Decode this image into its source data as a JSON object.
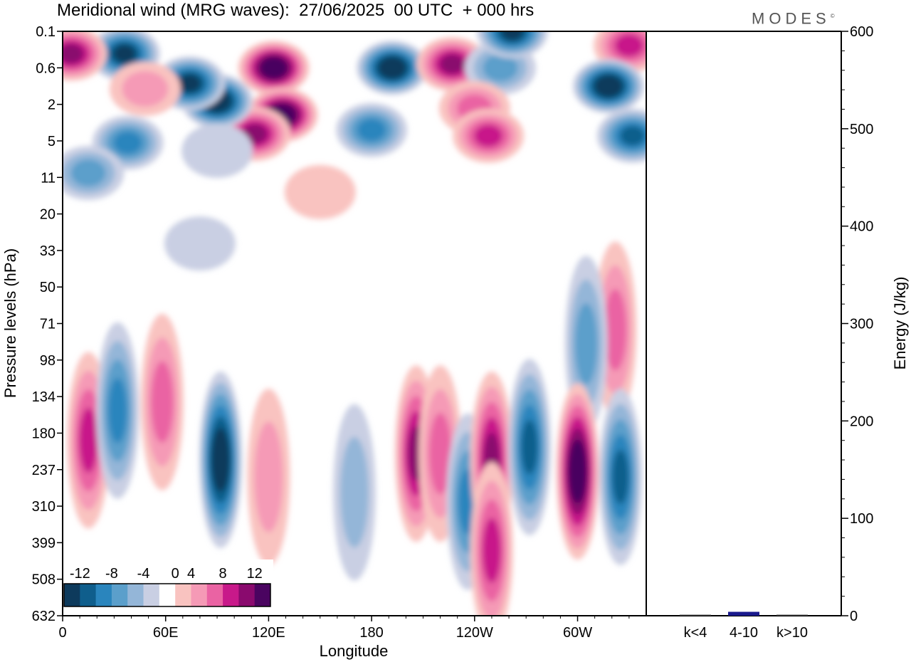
{
  "title": "Meridional wind (MRG waves):  27/06/2025  00 UTC  + 000 hrs",
  "logo": "MODES",
  "colors": {
    "neg": [
      "#0d3a5c",
      "#0f5e8c",
      "#2a85bd",
      "#5b9fcb",
      "#94b6d8",
      "#c9cfe3"
    ],
    "pos": [
      "#f9c3c0",
      "#f59ab6",
      "#ea63a3",
      "#c8198a",
      "#8a0a6e",
      "#4a0460"
    ],
    "bar": "#1a1a8c"
  },
  "chart_data": [
    {
      "type": "heatmap",
      "title": "Meridional wind (MRG waves):  27/06/2025  00 UTC  + 000 hrs",
      "xlabel": "Longitude",
      "ylabel": "Pressure levels (hPa)",
      "x_ticks": [
        "0",
        "60E",
        "120E",
        "180",
        "120W",
        "60W"
      ],
      "x_tick_degrees": [
        0,
        60,
        120,
        180,
        240,
        300
      ],
      "xlim": [
        0,
        340
      ],
      "y_ticks": [
        "0.1",
        "0.6",
        "2",
        "5",
        "11",
        "20",
        "33",
        "50",
        "71",
        "98",
        "134",
        "180",
        "237",
        "310",
        "399",
        "508",
        "632"
      ],
      "colorbar": {
        "labels": [
          "-12",
          "-8",
          "-4",
          "0",
          "4",
          "8",
          "12"
        ],
        "levels": [
          -14,
          -12,
          -10,
          -8,
          -6,
          -4,
          -2,
          2,
          4,
          6,
          8,
          10,
          12,
          14
        ]
      },
      "features": [
        {
          "lon": 123,
          "level": 0.6,
          "value": 14
        },
        {
          "lon": 128,
          "level": 2.6,
          "value": 14
        },
        {
          "lon": 112,
          "level": 4.2,
          "value": 10
        },
        {
          "lon": 90,
          "level": 1.8,
          "value": -14
        },
        {
          "lon": 74,
          "level": 1.0,
          "value": -12
        },
        {
          "lon": 36,
          "level": 0.3,
          "value": -12
        },
        {
          "lon": 180,
          "level": 0.5,
          "value": 0
        },
        {
          "lon": 192,
          "level": 0.6,
          "value": -14
        },
        {
          "lon": 227,
          "level": 0.5,
          "value": 10
        },
        {
          "lon": 255,
          "level": 0.6,
          "value": -6
        },
        {
          "lon": 262,
          "level": 0.1,
          "value": -12
        },
        {
          "lon": 330,
          "level": 0.2,
          "value": 8
        },
        {
          "lon": 5,
          "level": 0.3,
          "value": 10
        },
        {
          "lon": 318,
          "level": 1.1,
          "value": -14
        },
        {
          "lon": 332,
          "level": 4.4,
          "value": -10
        },
        {
          "lon": 240,
          "level": 2.2,
          "value": 6
        },
        {
          "lon": 248,
          "level": 4.4,
          "value": 8
        },
        {
          "lon": 180,
          "level": 3.8,
          "value": -8
        },
        {
          "lon": 38,
          "level": 5.2,
          "value": -8
        },
        {
          "lon": 92,
          "level": 4.0,
          "value": 0
        },
        {
          "lon": 48,
          "level": 1.2,
          "value": 4
        },
        {
          "lon": 15,
          "level": 10.0,
          "value": -6
        },
        {
          "lon": 90,
          "level": 6.2,
          "value": -2
        },
        {
          "lon": 150,
          "level": 14.0,
          "value": 2
        },
        {
          "lon": 80,
          "level": 30.0,
          "value": -2
        },
        {
          "lon": 322,
          "level": 75.0,
          "value": 6
        },
        {
          "lon": 305,
          "level": 85.0,
          "value": -6
        },
        {
          "lon": 15,
          "level": 190.0,
          "value": 8
        },
        {
          "lon": 32,
          "level": 150.0,
          "value": -8
        },
        {
          "lon": 58,
          "level": 140.0,
          "value": 6
        },
        {
          "lon": 92,
          "level": 220.0,
          "value": -14
        },
        {
          "lon": 120,
          "level": 250.0,
          "value": 4
        },
        {
          "lon": 170,
          "level": 280.0,
          "value": -4
        },
        {
          "lon": 206,
          "level": 210.0,
          "value": 10
        },
        {
          "lon": 220,
          "level": 210.0,
          "value": 6
        },
        {
          "lon": 236,
          "level": 300.0,
          "value": -8
        },
        {
          "lon": 250,
          "level": 220.0,
          "value": 10
        },
        {
          "lon": 250,
          "level": 420.0,
          "value": 8
        },
        {
          "lon": 272,
          "level": 200.0,
          "value": -10
        },
        {
          "lon": 300,
          "level": 240.0,
          "value": 14
        },
        {
          "lon": 325,
          "level": 250.0,
          "value": -10
        }
      ]
    },
    {
      "type": "bar",
      "categories": [
        "k<4",
        "4-10",
        "k>10"
      ],
      "values": [
        1,
        4,
        1
      ],
      "ylabel": "Energy (J/kg)",
      "ylim": [
        0,
        600
      ],
      "y_ticks": [
        "0",
        "100",
        "200",
        "300",
        "400",
        "500",
        "600"
      ]
    }
  ]
}
